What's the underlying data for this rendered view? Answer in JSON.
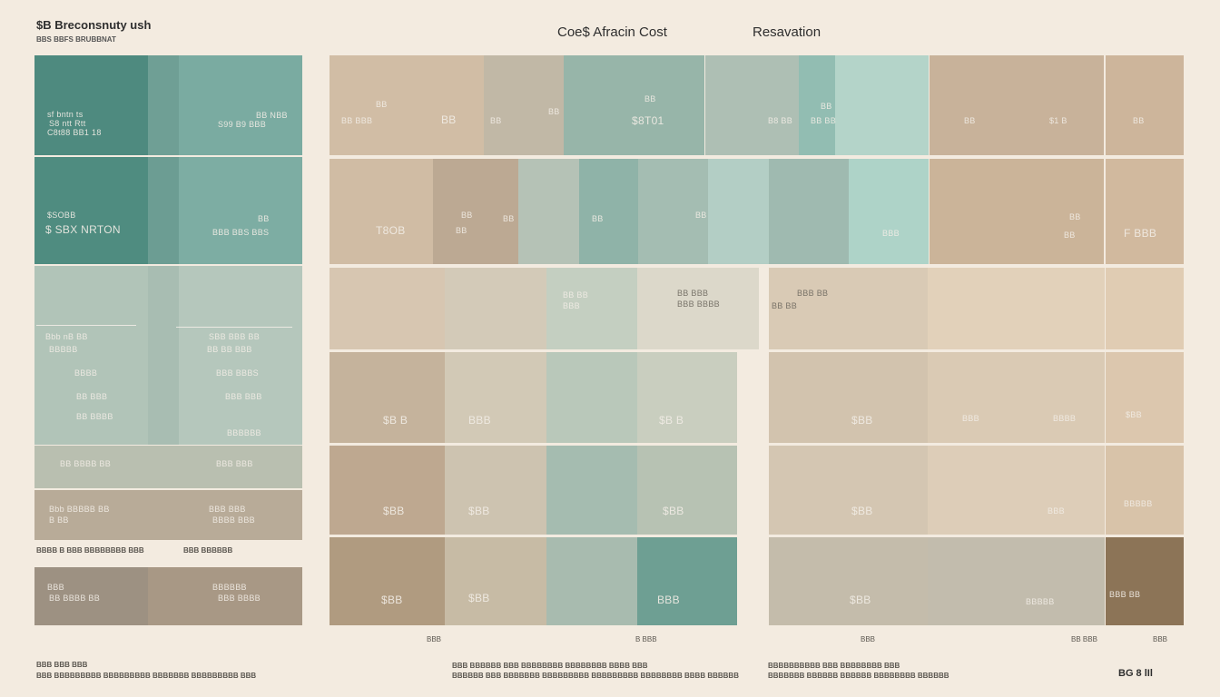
{
  "brand": {
    "title": "$B Breconsnuty ush",
    "subtitle": "BBS BBFS BRUBBNAT"
  },
  "header": {
    "col1": "Coe$ Afracin  Cost",
    "col2": "Resavation"
  },
  "colors": {
    "teal_dark": "#4f8c82",
    "teal_mid": "#7daca3",
    "teal_light": "#b7d5cc",
    "sage": "#c5c9b8",
    "sand": "#d3c2ab",
    "tan": "#c4ad92",
    "brown": "#8e7b64"
  },
  "left_panel": {
    "rows": [
      {
        "label_a": "sf bntn ts",
        "label_b": "S8 ntt Rtt",
        "label_c": "C8t88 BB1 18",
        "label_d": "BB NBB",
        "label_e": "S99 B9 BBB"
      },
      {
        "label_a": "$SOBB",
        "label_b": "$ SBX NRTON",
        "label_c": "BB",
        "label_d": "BBB BBS BBS"
      },
      {
        "items": [
          "Bbb nB  BB",
          "SBB BBB BB",
          "BBBBB",
          "BB BB BBB",
          "BBBB",
          "BBB BBBS",
          "BB BBB",
          "BBB BBB",
          "BB BBBB",
          "BBBBBB"
        ]
      },
      {
        "label_a": "BB BBBB BB",
        "label_b": "BBB BBB"
      },
      {
        "label_a": "Bbb BBBBB BB",
        "label_b": "B BB",
        "label_c": "BBB BBB",
        "label_d": "BBBB BBB"
      }
    ],
    "caption": "BBBB B BBB BBBBBBBB  BBB",
    "caption2": "BBB BBBBBB",
    "bottom": {
      "label_a": "BBB",
      "label_b": "BB BBBB BB",
      "label_c": "BBBBBB",
      "label_d": "BBB BBBB"
    }
  },
  "grid_labels": {
    "r1": [
      "BB",
      "BB  BBB",
      "BB",
      "BB",
      "BB",
      "$8T01",
      "BB",
      "B8  BB",
      "BB",
      "BB BB",
      "$1 B",
      "BB",
      "BB"
    ],
    "r2": [
      "BB",
      "T8OB",
      "BB",
      "BB",
      "BB",
      "BB",
      "BBB",
      "BB",
      "BB",
      "F BBB"
    ],
    "r3": [
      "BB BB",
      "BBB",
      "BB BBB",
      "BBB BBBB",
      "BBB BB",
      "BB BB"
    ],
    "r4": [
      "$B B",
      "BBB",
      "$B B",
      "$BB",
      "BBB",
      "BBBB",
      "$BB"
    ],
    "r5": [
      "$BB",
      "$BB",
      "$BB",
      "$BB",
      "BBB",
      "BBBBB"
    ],
    "r6": [
      "$BB",
      "$BB",
      "BBB",
      "$BB",
      "BBBBB",
      "BBB BB"
    ]
  },
  "grid_captions": [
    "BBB",
    "B BBB",
    "BBB",
    "BB BBB",
    "BBB"
  ],
  "footer": {
    "left_1": "BBB BBB BBB",
    "left_2": "BBB BBBBBBBBB BBBBBBBBB BBBBBBB BBBBBBBBB BBB",
    "mid_1": "BBB  BBBBBB BBB BBBBBBBB BBBBBBBB BBBB  BBB",
    "mid_2": "BBBBBB  BBB BBBBBBB BBBBBBBBB BBBBBBBBB BBBBBBBB BBBB BBBBBB",
    "right_1": "BBBBBBBBBB BBB BBBBBBBB BBB",
    "right_2": "BBBBBBB BBBBBB BBBBBB BBBBBBBB BBBBBB",
    "page": "BG 8  lIl"
  }
}
